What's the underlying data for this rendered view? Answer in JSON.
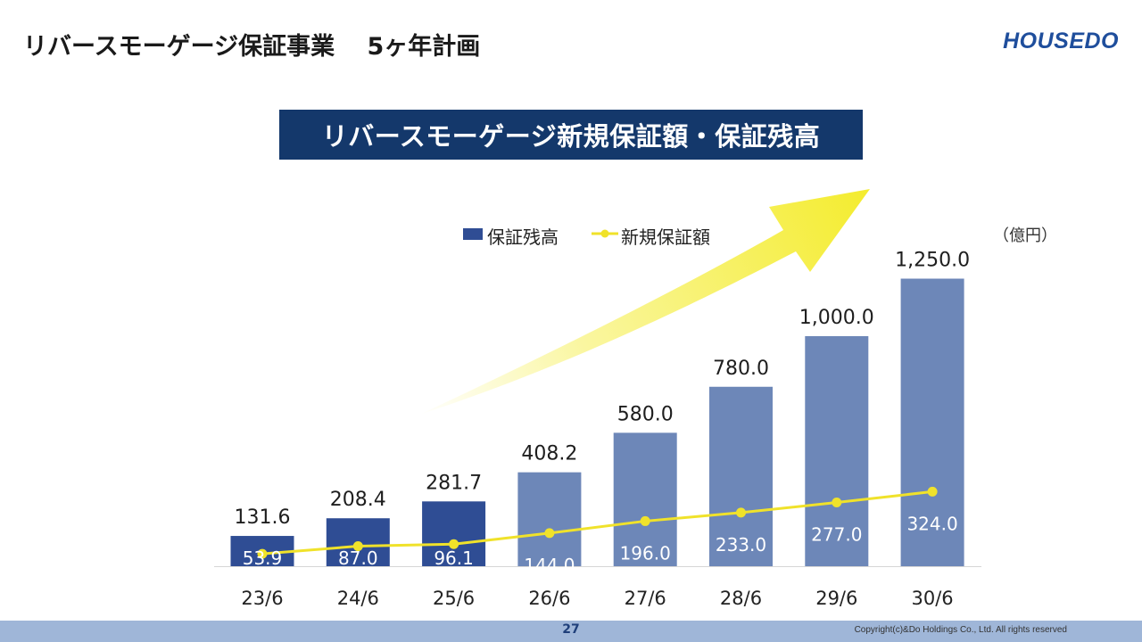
{
  "header": {
    "title": "リバースモーゲージ保証事業　 5ヶ年計画",
    "logo_text": "HOUSEDO"
  },
  "banner": {
    "text": "リバースモーゲージ新規保証額・保証残高"
  },
  "footer": {
    "page_number": "27",
    "copyright": "Copyright(c)&Do Holdings Co., Ltd. All rights reserved"
  },
  "colors": {
    "bar_actual": "#2f4d94",
    "bar_plan": "#6d87b8",
    "line": "#f0e22a",
    "banner_bg": "#14386b",
    "footer_bg": "#9fb6d8"
  },
  "chart_data": {
    "type": "bar",
    "title": "",
    "unit_label": "（億円）",
    "categories": [
      "23/6",
      "24/6",
      "25/6",
      "26/6",
      "27/6",
      "28/6",
      "29/6",
      "30/6"
    ],
    "series": [
      {
        "name": "保証残高",
        "kind": "bar",
        "values": [
          131.6,
          208.4,
          281.7,
          408.2,
          580.0,
          780.0,
          1000.0,
          1250.0
        ],
        "labels": [
          "131.6",
          "208.4",
          "281.7",
          "408.2",
          "580.0",
          "780.0",
          "1,000.0",
          "1,250.0"
        ],
        "actual_count": 3
      },
      {
        "name": "新規保証額",
        "kind": "line",
        "values": [
          53.9,
          87.0,
          96.1,
          144.0,
          196.0,
          233.0,
          277.0,
          324.0
        ],
        "labels": [
          "53.9",
          "87.0",
          "96.1",
          "144.0",
          "196.0",
          "233.0",
          "277.0",
          "324.0"
        ]
      }
    ],
    "legend_position": "top",
    "grid": false
  }
}
